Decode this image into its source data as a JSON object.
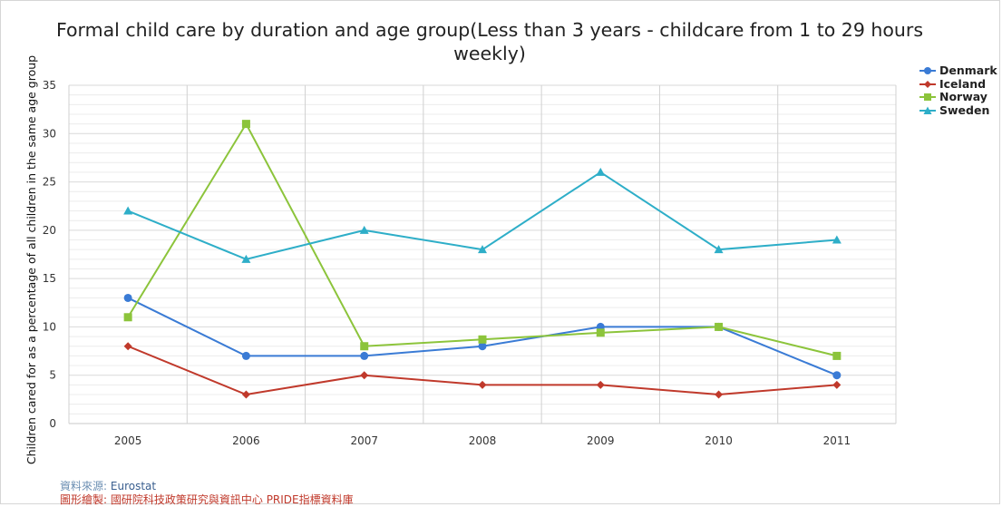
{
  "chart_data": {
    "type": "line",
    "title_line1": "Formal child care by duration and age group(Less than 3 years - childcare from 1 to 29 hours",
    "title_line2": "weekly)",
    "ylabel": "Children cared for as a percentage of all children in the same age group",
    "xlabel": "",
    "categories": [
      "2005",
      "2006",
      "2007",
      "2008",
      "2009",
      "2010",
      "2011"
    ],
    "y_ticks": [
      "0",
      "5",
      "10",
      "15",
      "20",
      "25",
      "30",
      "35"
    ],
    "ylim": [
      0,
      35
    ],
    "grid": true,
    "legend_position": "top-right",
    "series": [
      {
        "name": "Denmark",
        "color": "#3a7bd5",
        "marker": "circle",
        "values": [
          13,
          7,
          7,
          8,
          10,
          10,
          5
        ]
      },
      {
        "name": "Iceland",
        "color": "#c0392b",
        "marker": "diamond",
        "values": [
          8,
          3,
          5,
          4,
          4,
          3,
          4
        ]
      },
      {
        "name": "Norway",
        "color": "#8cc43b",
        "marker": "square",
        "values": [
          11,
          31,
          8,
          8.7,
          9.4,
          10,
          7
        ]
      },
      {
        "name": "Sweden",
        "color": "#2eaec8",
        "marker": "triangle",
        "values": [
          22,
          17,
          20,
          18,
          26,
          18,
          19
        ]
      }
    ]
  },
  "footer": {
    "source_label": "資料來源:",
    "source_value": "Eurostat",
    "credit_label": "圖形繪製:",
    "credit_value": "國研院科技政策研究與資訊中心 PRIDE指標資料庫"
  }
}
